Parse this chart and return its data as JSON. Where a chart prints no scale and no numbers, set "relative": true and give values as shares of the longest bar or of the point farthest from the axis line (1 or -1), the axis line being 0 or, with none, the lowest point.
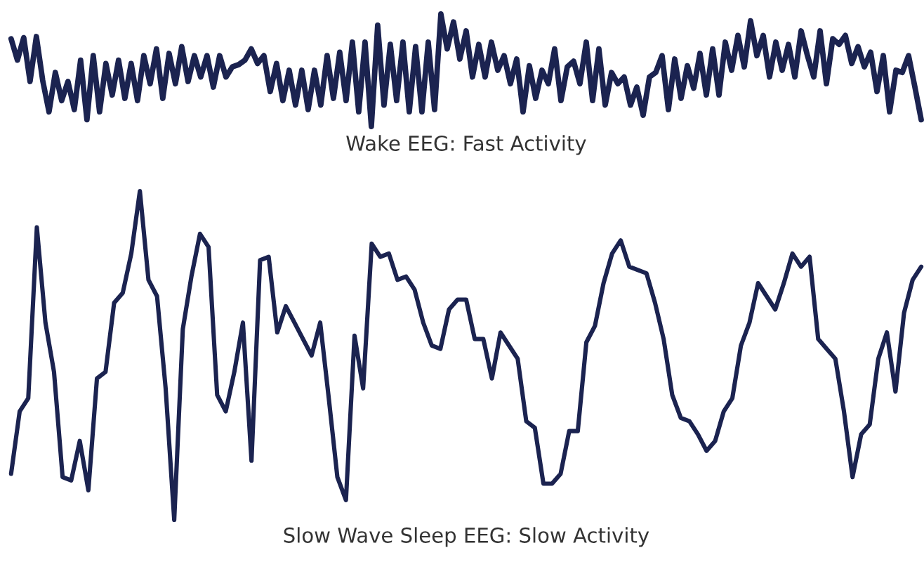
{
  "chart_data": [
    {
      "type": "line",
      "title": "Wake EEG: Fast Activity",
      "relative": true,
      "color": "#1b2350",
      "categories": [
        null,
        null,
        null,
        null,
        null,
        null,
        null,
        null,
        null,
        null,
        null,
        null,
        null,
        null,
        null,
        null,
        null,
        null,
        null,
        null,
        null,
        null,
        null,
        null,
        null,
        null,
        null,
        null,
        null,
        null,
        null,
        null,
        null,
        null,
        null,
        null,
        null,
        null,
        null,
        null,
        null,
        null,
        null,
        null,
        null,
        null,
        null,
        null,
        null,
        null,
        null,
        null,
        null,
        null,
        null,
        null,
        null,
        null,
        null,
        null,
        null,
        null,
        null,
        null,
        null,
        null,
        null,
        null,
        null,
        null,
        null,
        null,
        null,
        null,
        null,
        null,
        null,
        null,
        null,
        null,
        null,
        null,
        null,
        null,
        null,
        null,
        null,
        null,
        null,
        null,
        null,
        null,
        null,
        null,
        null,
        null,
        null,
        null,
        null,
        null,
        null,
        null,
        null,
        null,
        null,
        null,
        null,
        null,
        null,
        null,
        null,
        null,
        null,
        null,
        null,
        null,
        null,
        null,
        null,
        null,
        null,
        null,
        null,
        null,
        null,
        null,
        null,
        null,
        null,
        null,
        null,
        null,
        null,
        null,
        null,
        null,
        null,
        null,
        null,
        null,
        null,
        null,
        null,
        null,
        null
      ],
      "values": [
        0.78,
        0.59,
        0.79,
        0.4,
        0.8,
        0.41,
        0.13,
        0.48,
        0.23,
        0.4,
        0.15,
        0.59,
        0.06,
        0.63,
        0.13,
        0.56,
        0.28,
        0.59,
        0.25,
        0.56,
        0.23,
        0.63,
        0.38,
        0.69,
        0.25,
        0.65,
        0.38,
        0.71,
        0.4,
        0.63,
        0.44,
        0.63,
        0.35,
        0.63,
        0.44,
        0.53,
        0.55,
        0.59,
        0.69,
        0.56,
        0.63,
        0.31,
        0.56,
        0.23,
        0.5,
        0.19,
        0.5,
        0.15,
        0.5,
        0.19,
        0.63,
        0.25,
        0.66,
        0.23,
        0.75,
        0.13,
        0.75,
        0,
        0.9,
        0.19,
        0.73,
        0.23,
        0.75,
        0.13,
        0.71,
        0.13,
        0.75,
        0.15,
        1,
        0.69,
        0.93,
        0.6,
        0.85,
        0.44,
        0.73,
        0.44,
        0.75,
        0.5,
        0.63,
        0.38,
        0.6,
        0.13,
        0.54,
        0.25,
        0.5,
        0.38,
        0.69,
        0.23,
        0.53,
        0.58,
        0.38,
        0.75,
        0.23,
        0.69,
        0.19,
        0.48,
        0.38,
        0.44,
        0.19,
        0.35,
        0.1,
        0.44,
        0.48,
        0.63,
        0.15,
        0.6,
        0.25,
        0.54,
        0.34,
        0.65,
        0.28,
        0.69,
        0.28,
        0.75,
        0.5,
        0.81,
        0.53,
        0.94,
        0.63,
        0.81,
        0.44,
        0.75,
        0.5,
        0.73,
        0.44,
        0.85,
        0.63,
        0.44,
        0.85,
        0.38,
        0.78,
        0.73,
        0.81,
        0.56,
        0.71,
        0.53,
        0.66,
        0.31,
        0.63,
        0.13,
        0.5,
        0.48,
        0.63,
        0.35,
        0.06
      ]
    },
    {
      "type": "line",
      "title": "Slow Wave Sleep EEG: Slow Activity",
      "relative": true,
      "color": "#1b2350",
      "categories": [
        null,
        null,
        null,
        null,
        null,
        null,
        null,
        null,
        null,
        null,
        null,
        null,
        null,
        null,
        null,
        null,
        null,
        null,
        null,
        null,
        null,
        null,
        null,
        null,
        null,
        null,
        null,
        null,
        null,
        null,
        null,
        null,
        null,
        null,
        null,
        null,
        null,
        null,
        null,
        null,
        null,
        null,
        null,
        null,
        null,
        null,
        null,
        null,
        null,
        null,
        null,
        null,
        null,
        null,
        null,
        null,
        null,
        null,
        null,
        null,
        null,
        null,
        null,
        null,
        null,
        null,
        null,
        null,
        null,
        null,
        null,
        null,
        null,
        null,
        null,
        null,
        null,
        null,
        null,
        null,
        null,
        null,
        null,
        null,
        null,
        null,
        null,
        null,
        null,
        null,
        null,
        null,
        null,
        null,
        null,
        null,
        null,
        null,
        null,
        null,
        null,
        null,
        null,
        null,
        null,
        null,
        null
      ],
      "values": [
        0.14,
        0.33,
        0.37,
        0.89,
        0.6,
        0.45,
        0.13,
        0.12,
        0.24,
        0.09,
        0.43,
        0.45,
        0.66,
        0.69,
        0.81,
        1,
        0.73,
        0.68,
        0.4,
        0,
        0.58,
        0.74,
        0.87,
        0.83,
        0.38,
        0.33,
        0.45,
        0.6,
        0.18,
        0.79,
        0.8,
        0.57,
        0.65,
        0.6,
        0.55,
        0.5,
        0.6,
        0.37,
        0.13,
        0.06,
        0.56,
        0.4,
        0.84,
        0.8,
        0.81,
        0.73,
        0.74,
        0.7,
        0.6,
        0.53,
        0.52,
        0.64,
        0.67,
        0.67,
        0.55,
        0.55,
        0.43,
        0.57,
        0.53,
        0.49,
        0.3,
        0.28,
        0.11,
        0.11,
        0.14,
        0.27,
        0.27,
        0.54,
        0.59,
        0.72,
        0.81,
        0.85,
        0.77,
        0.76,
        0.75,
        0.66,
        0.55,
        0.38,
        0.31,
        0.3,
        0.26,
        0.21,
        0.24,
        0.33,
        0.37,
        0.53,
        0.6,
        0.72,
        0.68,
        0.64,
        0.72,
        0.81,
        0.77,
        0.8,
        0.55,
        0.52,
        0.49,
        0.33,
        0.13,
        0.26,
        0.29,
        0.49,
        0.57,
        0.39,
        0.63,
        0.73,
        0.77
      ]
    }
  ]
}
